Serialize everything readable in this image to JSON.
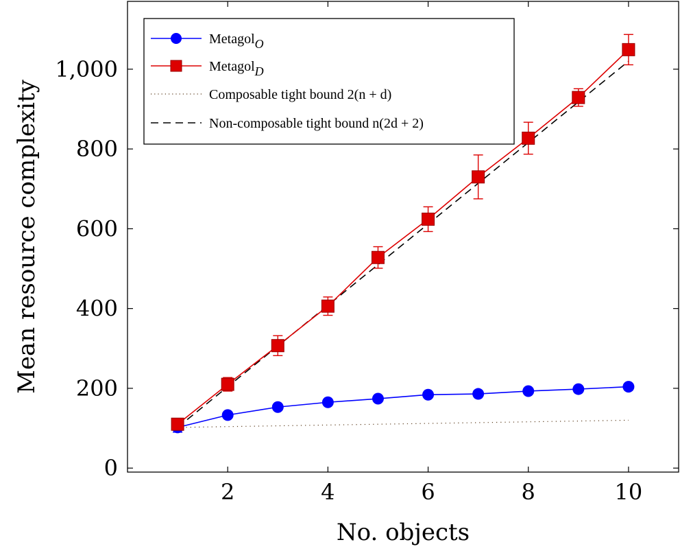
{
  "chart_data": {
    "type": "line",
    "xlabel": "No. objects",
    "ylabel": "Mean resource complexity",
    "xlim": [
      0,
      11
    ],
    "ylim": [
      -10,
      1170
    ],
    "grid": false,
    "legend_position": "top-left",
    "x_ticks": [
      2,
      4,
      6,
      8,
      10
    ],
    "x_tick_labels": [
      "2",
      "4",
      "6",
      "8",
      "10"
    ],
    "y_ticks": [
      0,
      200,
      400,
      600,
      800,
      1000
    ],
    "y_tick_labels": [
      "0",
      "200",
      "400",
      "600",
      "800",
      "1,000"
    ],
    "x": [
      1,
      2,
      3,
      4,
      5,
      6,
      7,
      8,
      9,
      10
    ],
    "series": [
      {
        "name": "Metagol",
        "name_sub": "O",
        "style": "solid-circle",
        "color": "#0000ff",
        "values": [
          102,
          133,
          153,
          165,
          174,
          184,
          186,
          193,
          198,
          204
        ],
        "error": [
          12,
          5,
          4,
          4,
          4,
          4,
          4,
          4,
          4,
          4
        ]
      },
      {
        "name": "Metagol",
        "name_sub": "D",
        "style": "solid-square",
        "color": "#dd0000",
        "values": [
          110,
          210,
          307,
          406,
          528,
          624,
          730,
          827,
          929,
          1049
        ],
        "error": [
          10,
          17,
          25,
          23,
          27,
          31,
          55,
          40,
          22,
          38
        ]
      },
      {
        "name": "Composable tight bound 2(n + d)",
        "style": "dotted",
        "color": "#5a3a1a",
        "values": [
          102,
          104,
          106,
          108,
          110,
          112,
          114,
          116,
          118,
          120
        ]
      },
      {
        "name": "Non-composable tight bound n(2d + 2)",
        "style": "dashed",
        "color": "#000000",
        "values": [
          102,
          204,
          306,
          408,
          510,
          612,
          714,
          816,
          918,
          1020
        ]
      }
    ]
  }
}
